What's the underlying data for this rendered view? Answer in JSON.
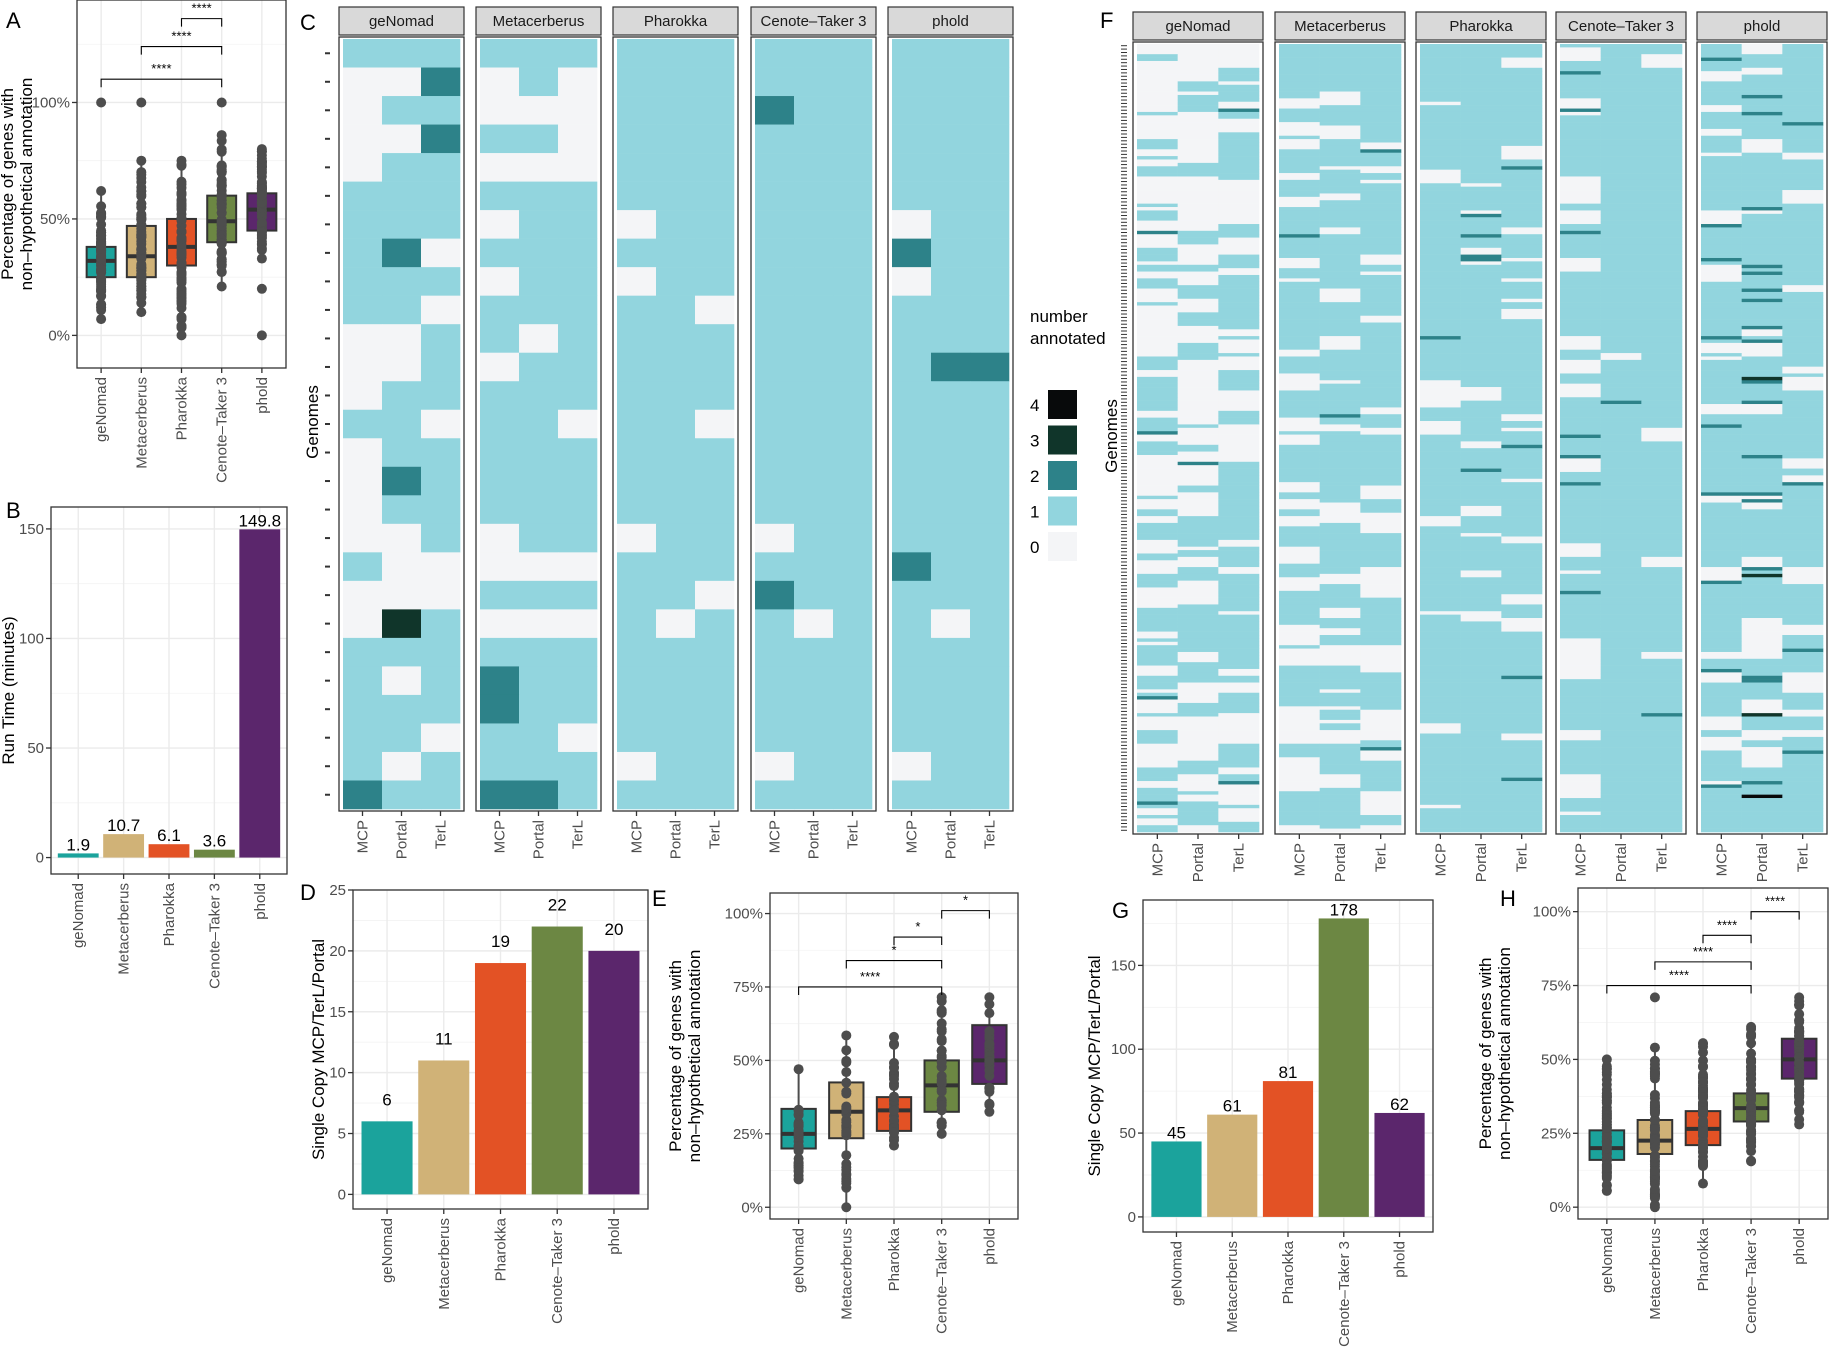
{
  "tools": [
    "geNomad",
    "Metacerberus",
    "Pharokka",
    "Cenote–Taker 3",
    "phold"
  ],
  "tool_colors": [
    "#1ba39c",
    "#d0b277",
    "#e35225",
    "#6c8743",
    "#5b266c"
  ],
  "genes": [
    "MCP",
    "Portal",
    "TerL"
  ],
  "heat_colors": {
    "0": "#f4f5f7",
    "1": "#92d5de",
    "2": "#2d8289",
    "3": "#10352a",
    "4": "#080a0b"
  },
  "chart_data": [
    {
      "panel": "A",
      "type": "box",
      "ylabel": "Percentage of genes with\nnon–hypothetical annotation",
      "yticks": [
        "0%",
        "50%",
        "100%"
      ],
      "ylim": [
        -0.14,
        1.44
      ],
      "categories": [
        "geNomad",
        "Metacerberus",
        "Pharokka",
        "Cenote–Taker 3",
        "phold"
      ],
      "boxes": [
        {
          "q1": 0.25,
          "median": 0.32,
          "q3": 0.38,
          "whisk_lo": 0.07,
          "whisk_hi": 0.62,
          "outliers": [
            1.0
          ]
        },
        {
          "q1": 0.25,
          "median": 0.34,
          "q3": 0.47,
          "whisk_lo": 0.1,
          "whisk_hi": 0.75,
          "outliers": [
            1.0
          ]
        },
        {
          "q1": 0.3,
          "median": 0.38,
          "q3": 0.5,
          "whisk_lo": 0.0,
          "whisk_hi": 0.75,
          "outliers": []
        },
        {
          "q1": 0.4,
          "median": 0.49,
          "q3": 0.6,
          "whisk_lo": 0.21,
          "whisk_hi": 0.86,
          "outliers": [
            1.0
          ]
        },
        {
          "q1": 0.45,
          "median": 0.54,
          "q3": 0.61,
          "whisk_lo": 0.33,
          "whisk_hi": 0.8,
          "outliers": [
            0.2,
            0.0
          ]
        }
      ],
      "comparisons": [
        {
          "from": 0,
          "to": 3,
          "y": 1.1,
          "label": "****"
        },
        {
          "from": 1,
          "to": 3,
          "y": 1.24,
          "label": "****"
        },
        {
          "from": 2,
          "to": 3,
          "y": 1.36,
          "label": "****"
        },
        {
          "from": 3,
          "to": 4,
          "y": 1.48,
          "label": "*"
        }
      ]
    },
    {
      "panel": "B",
      "type": "bar",
      "ylabel": "Run Time (minutes)",
      "yticks": [
        0,
        50,
        100,
        150
      ],
      "ylim": [
        -7.5,
        160
      ],
      "categories": [
        "geNomad",
        "Metacerberus",
        "Pharokka",
        "Cenote–Taker 3",
        "phold"
      ],
      "values": [
        1.9,
        10.7,
        6.1,
        3.6,
        149.8
      ],
      "labels": [
        "1.9",
        "10.7",
        "6.1",
        "3.6",
        "149.8"
      ]
    },
    {
      "panel": "D",
      "type": "bar",
      "ylabel": "Single Copy MCP/TerL/Portal",
      "yticks": [
        0,
        5,
        10,
        15,
        20,
        25
      ],
      "ylim": [
        -1.2,
        25
      ],
      "categories": [
        "geNomad",
        "Metacerberus",
        "Pharokka",
        "Cenote–Taker 3",
        "phold"
      ],
      "values": [
        6,
        11,
        19,
        22,
        20
      ],
      "labels": [
        "6",
        "11",
        "19",
        "22",
        "20"
      ]
    },
    {
      "panel": "E",
      "type": "box",
      "ylabel": "Percentage of genes with\nnon–hypothetical annotation",
      "yticks": [
        "0%",
        "25%",
        "50%",
        "75%",
        "100%"
      ],
      "ylim": [
        -0.04,
        1.07
      ],
      "categories": [
        "geNomad",
        "Metacerberus",
        "Pharokka",
        "Cenote–Taker 3",
        "phold"
      ],
      "boxes": [
        {
          "q1": 0.2,
          "median": 0.25,
          "q3": 0.335,
          "whisk_lo": 0.095,
          "whisk_hi": 0.47,
          "outliers": []
        },
        {
          "q1": 0.235,
          "median": 0.325,
          "q3": 0.425,
          "whisk_lo": 0.0,
          "whisk_hi": 0.585,
          "outliers": []
        },
        {
          "q1": 0.26,
          "median": 0.33,
          "q3": 0.375,
          "whisk_lo": 0.21,
          "whisk_hi": 0.58,
          "outliers": []
        },
        {
          "q1": 0.325,
          "median": 0.415,
          "q3": 0.5,
          "whisk_lo": 0.25,
          "whisk_hi": 0.715,
          "outliers": []
        },
        {
          "q1": 0.42,
          "median": 0.5,
          "q3": 0.62,
          "whisk_lo": 0.325,
          "whisk_hi": 0.715,
          "outliers": []
        }
      ],
      "comparisons": [
        {
          "from": 0,
          "to": 3,
          "y": 0.75,
          "label": "****"
        },
        {
          "from": 1,
          "to": 3,
          "y": 0.84,
          "label": "*"
        },
        {
          "from": 2,
          "to": 3,
          "y": 0.92,
          "label": "*"
        },
        {
          "from": 3,
          "to": 4,
          "y": 1.01,
          "label": "*"
        }
      ]
    },
    {
      "panel": "G",
      "type": "bar",
      "ylabel": "Single Copy MCP/TerL/Portal",
      "yticks": [
        0,
        50,
        100,
        150
      ],
      "ylim": [
        -9,
        189
      ],
      "categories": [
        "geNomad",
        "Metacerberus",
        "Pharokka",
        "Cenote–Taker 3",
        "phold"
      ],
      "values": [
        45,
        61,
        81,
        178,
        62
      ],
      "labels": [
        "45",
        "61",
        "81",
        "178",
        "62"
      ]
    },
    {
      "panel": "H",
      "type": "box",
      "ylabel": "Percentage of genes with\nnon–hypothetical annotation",
      "yticks": [
        "0%",
        "25%",
        "50%",
        "75%",
        "100%"
      ],
      "ylim": [
        -0.04,
        1.08
      ],
      "categories": [
        "geNomad",
        "Metacerberus",
        "Pharokka",
        "Cenote–Taker 3",
        "phold"
      ],
      "boxes": [
        {
          "q1": 0.16,
          "median": 0.2,
          "q3": 0.26,
          "whisk_lo": 0.055,
          "whisk_hi": 0.5,
          "outliers": []
        },
        {
          "q1": 0.18,
          "median": 0.225,
          "q3": 0.295,
          "whisk_lo": 0.0,
          "whisk_hi": 0.54,
          "outliers": [
            0.71
          ]
        },
        {
          "q1": 0.21,
          "median": 0.265,
          "q3": 0.325,
          "whisk_lo": 0.08,
          "whisk_hi": 0.555,
          "outliers": []
        },
        {
          "q1": 0.29,
          "median": 0.335,
          "q3": 0.385,
          "whisk_lo": 0.155,
          "whisk_hi": 0.61,
          "outliers": []
        },
        {
          "q1": 0.435,
          "median": 0.5,
          "q3": 0.57,
          "whisk_lo": 0.28,
          "whisk_hi": 0.71,
          "outliers": []
        }
      ],
      "comparisons": [
        {
          "from": 0,
          "to": 3,
          "y": 0.75,
          "label": "****"
        },
        {
          "from": 1,
          "to": 3,
          "y": 0.83,
          "label": "****"
        },
        {
          "from": 2,
          "to": 3,
          "y": 0.92,
          "label": "****"
        },
        {
          "from": 3,
          "to": 4,
          "y": 1.0,
          "label": "****"
        }
      ]
    },
    {
      "panel": "C",
      "type": "heatmap",
      "ylabel": "Genomes",
      "facets": [
        "geNomad",
        "Metacerberus",
        "Pharokka",
        "Cenote–Taker 3",
        "phold"
      ],
      "columns": [
        "MCP",
        "Portal",
        "TerL"
      ],
      "legend_title": "number\nannotated",
      "legend_levels": [
        4,
        3,
        2,
        1,
        0
      ],
      "rows_per_facet": [
        [
          "111",
          "002",
          "011",
          "002",
          "011",
          "111",
          "111",
          "120",
          "111",
          "110",
          "001",
          "001",
          "011",
          "110",
          "011",
          "021",
          "011",
          "001",
          "100",
          "000",
          "031",
          "111",
          "101",
          "111",
          "110",
          "101",
          "211"
        ],
        [
          "111",
          "010",
          "000",
          "110",
          "000",
          "111",
          "011",
          "111",
          "011",
          "111",
          "101",
          "011",
          "111",
          "110",
          "111",
          "111",
          "111",
          "011",
          "000",
          "111",
          "000",
          "111",
          "211",
          "211",
          "110",
          "111",
          "221"
        ],
        [
          "111",
          "111",
          "111",
          "111",
          "111",
          "111",
          "011",
          "111",
          "011",
          "110",
          "111",
          "111",
          "111",
          "110",
          "111",
          "111",
          "111",
          "011",
          "111",
          "110",
          "101",
          "111",
          "111",
          "111",
          "111",
          "011",
          "111"
        ],
        [
          "111",
          "111",
          "211",
          "111",
          "111",
          "111",
          "111",
          "111",
          "111",
          "111",
          "111",
          "111",
          "111",
          "111",
          "111",
          "111",
          "111",
          "011",
          "111",
          "211",
          "101",
          "111",
          "111",
          "111",
          "111",
          "011",
          "111"
        ],
        [
          "111",
          "111",
          "111",
          "111",
          "111",
          "111",
          "011",
          "211",
          "011",
          "111",
          "111",
          "122",
          "111",
          "111",
          "111",
          "111",
          "111",
          "111",
          "211",
          "111",
          "101",
          "111",
          "111",
          "111",
          "111",
          "011",
          "111"
        ]
      ]
    },
    {
      "panel": "F",
      "type": "heatmap",
      "ylabel": "Genomes",
      "facets": [
        "geNomad",
        "Metacerberus",
        "Pharokka",
        "Cenote–Taker 3",
        "phold"
      ],
      "columns": [
        "MCP",
        "Portal",
        "TerL"
      ],
      "n_rows": 232,
      "cell_level_probabilities": [
        {
          "MCP": [
            0.55,
            0.43,
            0.02,
            0,
            0
          ],
          "Portal": [
            0.5,
            0.46,
            0.03,
            0.01,
            0
          ],
          "TerL": [
            0.4,
            0.57,
            0.03,
            0,
            0
          ]
        },
        {
          "MCP": [
            0.45,
            0.53,
            0.02,
            0,
            0
          ],
          "Portal": [
            0.22,
            0.76,
            0.02,
            0,
            0
          ],
          "TerL": [
            0.22,
            0.76,
            0.02,
            0,
            0
          ]
        },
        {
          "MCP": [
            0.18,
            0.8,
            0.02,
            0,
            0
          ],
          "Portal": [
            0.12,
            0.83,
            0.05,
            0,
            0
          ],
          "TerL": [
            0.14,
            0.82,
            0.04,
            0,
            0
          ]
        },
        {
          "MCP": [
            0.16,
            0.72,
            0.09,
            0.02,
            0.01
          ],
          "Portal": [
            0.03,
            0.95,
            0.02,
            0,
            0
          ],
          "TerL": [
            0.04,
            0.94,
            0.02,
            0,
            0
          ]
        },
        {
          "MCP": [
            0.2,
            0.72,
            0.08,
            0,
            0
          ],
          "Portal": [
            0.12,
            0.66,
            0.16,
            0.05,
            0.01
          ],
          "TerL": [
            0.12,
            0.82,
            0.06,
            0,
            0
          ]
        }
      ]
    }
  ],
  "panel_letters": [
    "A",
    "B",
    "C",
    "D",
    "E",
    "F",
    "G",
    "H"
  ]
}
